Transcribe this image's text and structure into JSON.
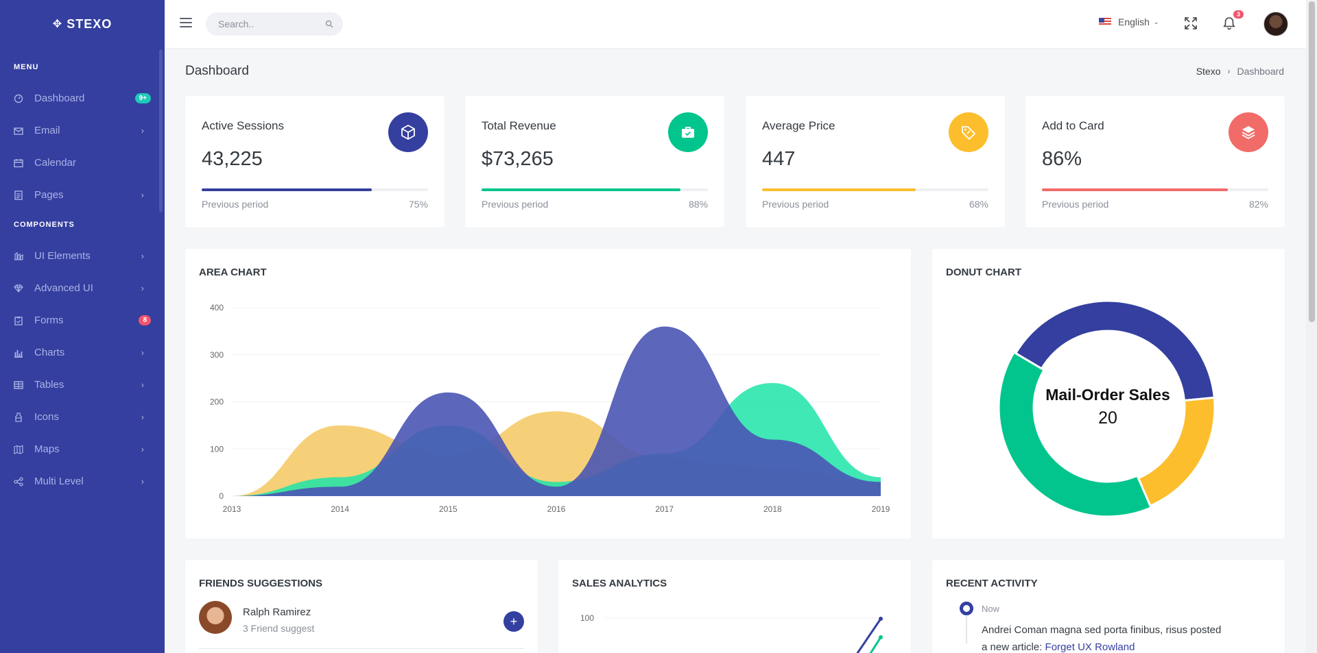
{
  "brand": {
    "name": "STEXO",
    "icon": "move-icon"
  },
  "sidebar": {
    "sections": [
      {
        "title": "MENU"
      },
      {
        "title": "COMPONENTS"
      }
    ],
    "menu": [
      {
        "label": "Dashboard",
        "icon": "dashboard-icon",
        "badge": "9+",
        "badge_color": "#1ecab8"
      },
      {
        "label": "Email",
        "icon": "mail-icon",
        "chevron": "›"
      },
      {
        "label": "Calendar",
        "icon": "calendar-icon"
      },
      {
        "label": "Pages",
        "icon": "pages-icon",
        "chevron": "›"
      }
    ],
    "components": [
      {
        "label": "UI Elements",
        "icon": "layers-icon",
        "chevron": "›"
      },
      {
        "label": "Advanced UI",
        "icon": "diamond-icon",
        "chevron": "›"
      },
      {
        "label": "Forms",
        "icon": "clipboard-icon",
        "badge": "8",
        "badge_color": "#f1556c"
      },
      {
        "label": "Charts",
        "icon": "bar-chart-icon",
        "chevron": "›"
      },
      {
        "label": "Tables",
        "icon": "table-icon",
        "chevron": "›"
      },
      {
        "label": "Icons",
        "icon": "bottle-icon",
        "chevron": "›"
      },
      {
        "label": "Maps",
        "icon": "map-icon",
        "chevron": "›"
      },
      {
        "label": "Multi Level",
        "icon": "share-icon",
        "chevron": "›"
      }
    ]
  },
  "topbar": {
    "search_placeholder": "Search..",
    "language": "English",
    "notification_count": "3"
  },
  "page": {
    "title": "Dashboard",
    "breadcrumb": [
      "Stexo",
      "Dashboard"
    ]
  },
  "stats": [
    {
      "title": "Active Sessions",
      "value": "43,225",
      "prev_label": "Previous period",
      "percent": "75%",
      "progress": 0.75,
      "color": "#343f9f",
      "icon": "cube-icon"
    },
    {
      "title": "Total Revenue",
      "value": "$73,265",
      "prev_label": "Previous period",
      "percent": "88%",
      "progress": 0.88,
      "color": "#02c58d",
      "icon": "briefcase-icon"
    },
    {
      "title": "Average Price",
      "value": "447",
      "prev_label": "Previous period",
      "percent": "68%",
      "progress": 0.68,
      "color": "#fcbe2d",
      "icon": "tag-icon"
    },
    {
      "title": "Add to Card",
      "value": "86%",
      "prev_label": "Previous period",
      "percent": "82%",
      "progress": 0.82,
      "color": "#f16c69",
      "icon": "stack-icon"
    }
  ],
  "area_chart": {
    "title": "AREA CHART"
  },
  "donut_chart": {
    "title": "DONUT CHART",
    "center_label": "Mail-Order Sales",
    "center_value": "20"
  },
  "friends": {
    "title": "FRIENDS SUGGESTIONS",
    "items": [
      {
        "name": "Ralph Ramirez",
        "sub": "3 Friend suggest"
      }
    ]
  },
  "sales": {
    "title": "SALES ANALYTICS",
    "ytick_top": "100"
  },
  "activity": {
    "title": "RECENT ACTIVITY",
    "items": [
      {
        "time": "Now",
        "text": "Andrei Coman magna sed porta finibus, risus posted a new article: ",
        "link": "Forget UX Rowland"
      }
    ]
  },
  "chart_data": [
    {
      "type": "area",
      "title": "AREA CHART",
      "x": [
        2013,
        2014,
        2015,
        2016,
        2017,
        2018,
        2019
      ],
      "ylim": [
        0,
        400
      ],
      "yticks": [
        0,
        100,
        200,
        300,
        400
      ],
      "series": [
        {
          "color": "#f5c860",
          "values": [
            0,
            150,
            90,
            180,
            80,
            60,
            30
          ]
        },
        {
          "color": "#1ee4a8",
          "values": [
            0,
            40,
            150,
            30,
            90,
            240,
            40
          ]
        },
        {
          "color": "#4a55b4",
          "values": [
            0,
            20,
            220,
            20,
            360,
            120,
            30
          ]
        }
      ]
    },
    {
      "type": "pie",
      "title": "DONUT CHART",
      "series": [
        {
          "color": "#343f9f",
          "value": 40
        },
        {
          "color": "#fcbe2d",
          "value": 20
        },
        {
          "color": "#02c58d",
          "value": 40
        }
      ]
    },
    {
      "type": "line",
      "title": "SALES ANALYTICS",
      "yticks": [
        100
      ],
      "series": [
        {
          "color": "#343f9f"
        },
        {
          "color": "#02c58d"
        }
      ]
    }
  ]
}
